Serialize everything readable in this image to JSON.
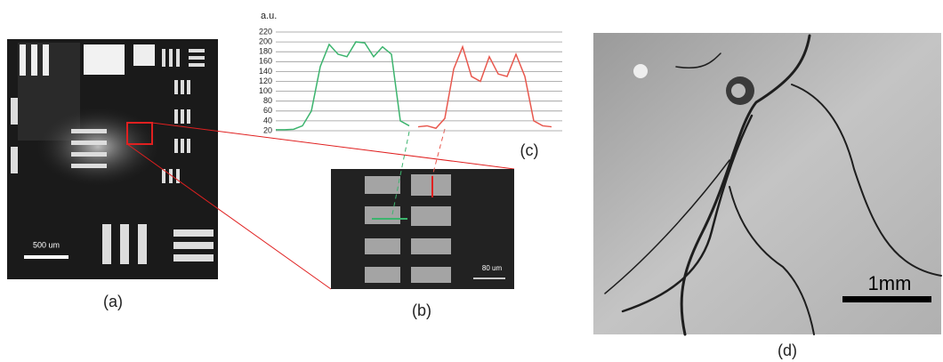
{
  "chart_data": {
    "type": "line",
    "y_label": "a.u.",
    "x": [
      0,
      1,
      2,
      3,
      4,
      5,
      6,
      7,
      8,
      9,
      10,
      11,
      12,
      13,
      14,
      15,
      16,
      17,
      18,
      19,
      20,
      21,
      22,
      23,
      24,
      25,
      26,
      27,
      28,
      29,
      30,
      31
    ],
    "xlim": [
      0,
      31
    ],
    "ylim": [
      20,
      220
    ],
    "yticks": [
      20,
      40,
      60,
      80,
      100,
      120,
      140,
      160,
      180,
      200,
      220
    ],
    "grid": true,
    "series": [
      {
        "color": "#3cb46e",
        "values": [
          22,
          22,
          23,
          30,
          60,
          150,
          195,
          175,
          170,
          200,
          198,
          170,
          190,
          175,
          40,
          30,
          null,
          null,
          null,
          null,
          null,
          null,
          null,
          null,
          null,
          null,
          null,
          null,
          null,
          null,
          null,
          null
        ]
      },
      {
        "color": "#e8584e",
        "values": [
          null,
          null,
          null,
          null,
          null,
          null,
          null,
          null,
          null,
          null,
          null,
          null,
          null,
          null,
          null,
          null,
          28,
          30,
          25,
          45,
          145,
          190,
          130,
          120,
          170,
          135,
          130,
          175,
          130,
          40,
          30,
          28
        ]
      }
    ]
  },
  "panels": {
    "a": "(a)",
    "b": "(b)",
    "c": "(c)",
    "d": "(d)",
    "scale_a": "500 um",
    "scale_b": "80 um",
    "scale_d": "1mm"
  }
}
